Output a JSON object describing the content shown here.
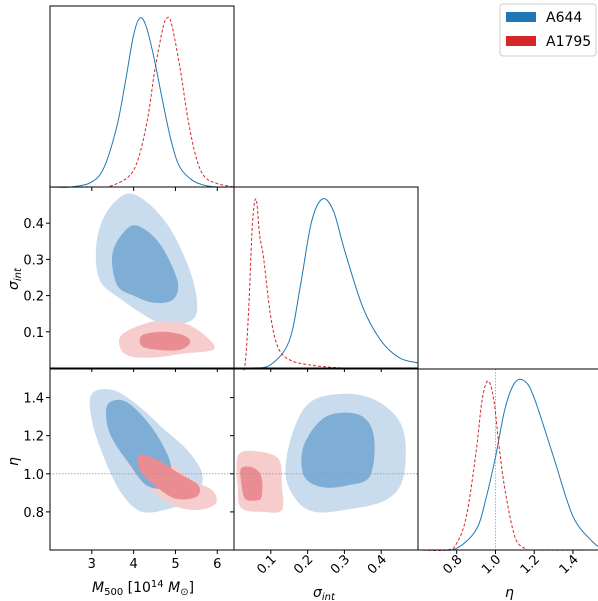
{
  "colors": {
    "A644": "#1f77b4",
    "A1795": "#d62728",
    "A644_outer": "#c9dcee",
    "A644_inner": "#7eadd6",
    "A1795_outer": "#f6cccd",
    "A1795_inner": "#e98d92"
  },
  "legend": {
    "entries": [
      "A644",
      "A1795"
    ],
    "position": "top-right"
  },
  "chart_data": {
    "type": "corner-plot",
    "parameters": [
      {
        "name": "M500",
        "label": "M_500 [10^14 M_sun]",
        "range": [
          2,
          6.4
        ],
        "ticks": [
          "3",
          "4",
          "5",
          "6"
        ]
      },
      {
        "name": "sigma_int",
        "label": "σ_int",
        "range": [
          0.0,
          0.5
        ],
        "ticks": [
          "0.1",
          "0.2",
          "0.3",
          "0.4"
        ]
      },
      {
        "name": "eta",
        "label": "η",
        "range": [
          0.6,
          1.55
        ],
        "ticks": [
          "0.8",
          "1.0",
          "1.2",
          "1.4"
        ],
        "reference_line": 1.0
      }
    ],
    "series": [
      {
        "name": "A644",
        "line_style": "solid",
        "M500_posterior": {
          "x": [
            2.0,
            2.5,
            3.0,
            3.3,
            3.6,
            3.8,
            4.0,
            4.15,
            4.3,
            4.5,
            4.7,
            4.9,
            5.1,
            5.4,
            5.7,
            6.0,
            6.4
          ],
          "density": [
            0.0,
            0.0,
            0.03,
            0.12,
            0.36,
            0.62,
            0.9,
            1.0,
            0.95,
            0.75,
            0.5,
            0.27,
            0.12,
            0.04,
            0.01,
            0.0,
            0.0
          ]
        },
        "sigma_int_posterior": {
          "x": [
            0.0,
            0.05,
            0.1,
            0.15,
            0.18,
            0.21,
            0.24,
            0.27,
            0.3,
            0.35,
            0.4,
            0.45,
            0.5
          ],
          "density": [
            0.0,
            0.0,
            0.02,
            0.16,
            0.48,
            0.86,
            1.0,
            0.93,
            0.7,
            0.36,
            0.16,
            0.06,
            0.03
          ]
        },
        "eta_posterior": {
          "x": [
            0.6,
            0.7,
            0.8,
            0.9,
            0.95,
            1.0,
            1.05,
            1.1,
            1.15,
            1.2,
            1.3,
            1.4,
            1.5,
            1.55
          ],
          "density": [
            0.0,
            0.0,
            0.01,
            0.12,
            0.3,
            0.55,
            0.84,
            0.99,
            1.0,
            0.9,
            0.55,
            0.2,
            0.05,
            0.01
          ]
        }
      },
      {
        "name": "A1795",
        "line_style": "dashed",
        "M500_posterior": {
          "x": [
            2.0,
            3.0,
            3.5,
            4.0,
            4.3,
            4.5,
            4.7,
            4.8,
            4.9,
            5.1,
            5.3,
            5.5,
            5.7,
            6.0,
            6.4
          ],
          "density": [
            0.0,
            0.0,
            0.01,
            0.1,
            0.36,
            0.68,
            0.94,
            1.0,
            0.97,
            0.72,
            0.4,
            0.17,
            0.06,
            0.02,
            0.0
          ]
        },
        "sigma_int_posterior": {
          "x": [
            0.0,
            0.02,
            0.03,
            0.04,
            0.05,
            0.06,
            0.07,
            0.08,
            0.1,
            0.12,
            0.15,
            0.2,
            0.3,
            0.5
          ],
          "density": [
            0.0,
            0.0,
            0.02,
            0.35,
            0.85,
            1.0,
            0.78,
            0.66,
            0.3,
            0.12,
            0.05,
            0.02,
            0.0,
            0.0
          ]
        },
        "eta_posterior": {
          "x": [
            0.6,
            0.75,
            0.8,
            0.85,
            0.9,
            0.93,
            0.96,
            0.99,
            1.02,
            1.05,
            1.1,
            1.15,
            1.2,
            1.55
          ],
          "density": [
            0.0,
            0.0,
            0.04,
            0.2,
            0.58,
            0.88,
            1.0,
            0.9,
            0.6,
            0.35,
            0.08,
            0.01,
            0.0,
            0.0
          ]
        }
      }
    ],
    "contours": [
      {
        "series": "A644",
        "pair": [
          "M500",
          "sigma_int"
        ],
        "level": "outer",
        "points": [
          [
            3.8,
            0.48
          ],
          [
            4.3,
            0.46
          ],
          [
            4.9,
            0.38
          ],
          [
            5.4,
            0.25
          ],
          [
            5.5,
            0.15
          ],
          [
            5.1,
            0.12
          ],
          [
            4.7,
            0.12
          ],
          [
            4.2,
            0.15
          ],
          [
            3.7,
            0.19
          ],
          [
            3.2,
            0.24
          ],
          [
            3.1,
            0.33
          ],
          [
            3.3,
            0.42
          ]
        ]
      },
      {
        "series": "A644",
        "pair": [
          "M500",
          "sigma_int"
        ],
        "level": "inner",
        "points": [
          [
            3.9,
            0.39
          ],
          [
            4.3,
            0.38
          ],
          [
            4.7,
            0.33
          ],
          [
            5.05,
            0.24
          ],
          [
            4.95,
            0.19
          ],
          [
            4.5,
            0.18
          ],
          [
            4.0,
            0.2
          ],
          [
            3.6,
            0.23
          ],
          [
            3.5,
            0.32
          ]
        ]
      },
      {
        "series": "A1795",
        "pair": [
          "M500",
          "sigma_int"
        ],
        "level": "outer",
        "points": [
          [
            3.7,
            0.09
          ],
          [
            4.2,
            0.12
          ],
          [
            4.7,
            0.13
          ],
          [
            5.3,
            0.12
          ],
          [
            5.8,
            0.08
          ],
          [
            5.9,
            0.05
          ],
          [
            5.2,
            0.04
          ],
          [
            4.6,
            0.03
          ],
          [
            4.0,
            0.03
          ],
          [
            3.7,
            0.05
          ]
        ]
      },
      {
        "series": "A1795",
        "pair": [
          "M500",
          "sigma_int"
        ],
        "level": "inner",
        "points": [
          [
            4.2,
            0.09
          ],
          [
            4.7,
            0.1
          ],
          [
            5.2,
            0.09
          ],
          [
            5.35,
            0.07
          ],
          [
            5.1,
            0.05
          ],
          [
            4.6,
            0.05
          ],
          [
            4.2,
            0.06
          ]
        ]
      },
      {
        "series": "A644",
        "pair": [
          "M500",
          "eta"
        ],
        "level": "outer",
        "points": [
          [
            3.0,
            1.42
          ],
          [
            3.5,
            1.44
          ],
          [
            4.1,
            1.36
          ],
          [
            4.7,
            1.24
          ],
          [
            5.3,
            1.12
          ],
          [
            5.65,
            0.99
          ],
          [
            5.45,
            0.87
          ],
          [
            4.9,
            0.82
          ],
          [
            4.2,
            0.8
          ],
          [
            3.7,
            0.9
          ],
          [
            3.3,
            1.08
          ],
          [
            3.0,
            1.28
          ]
        ]
      },
      {
        "series": "A644",
        "pair": [
          "M500",
          "eta"
        ],
        "level": "inner",
        "points": [
          [
            3.4,
            1.37
          ],
          [
            3.8,
            1.38
          ],
          [
            4.3,
            1.28
          ],
          [
            4.7,
            1.15
          ],
          [
            4.9,
            1.03
          ],
          [
            4.75,
            0.93
          ],
          [
            4.3,
            0.94
          ],
          [
            3.9,
            1.05
          ],
          [
            3.5,
            1.18
          ],
          [
            3.35,
            1.28
          ]
        ]
      },
      {
        "series": "A1795",
        "pair": [
          "M500",
          "eta"
        ],
        "level": "outer",
        "points": [
          [
            3.9,
            1.15
          ],
          [
            4.3,
            1.17
          ],
          [
            4.8,
            1.07
          ],
          [
            5.4,
            0.97
          ],
          [
            5.9,
            0.91
          ],
          [
            5.95,
            0.84
          ],
          [
            5.5,
            0.81
          ],
          [
            4.9,
            0.84
          ],
          [
            4.2,
            0.96
          ],
          [
            3.85,
            1.06
          ]
        ]
      },
      {
        "series": "A1795",
        "pair": [
          "M500",
          "eta"
        ],
        "level": "inner",
        "points": [
          [
            4.15,
            1.1
          ],
          [
            4.6,
            1.07
          ],
          [
            5.1,
            1.0
          ],
          [
            5.55,
            0.94
          ],
          [
            5.5,
            0.88
          ],
          [
            5.0,
            0.87
          ],
          [
            4.5,
            0.94
          ],
          [
            4.15,
            1.02
          ]
        ]
      },
      {
        "series": "A644",
        "pair": [
          "sigma_int",
          "eta"
        ],
        "level": "outer",
        "points": [
          [
            0.16,
            1.22
          ],
          [
            0.21,
            1.38
          ],
          [
            0.31,
            1.42
          ],
          [
            0.4,
            1.37
          ],
          [
            0.46,
            1.23
          ],
          [
            0.46,
            0.98
          ],
          [
            0.41,
            0.86
          ],
          [
            0.3,
            0.81
          ],
          [
            0.22,
            0.8
          ],
          [
            0.17,
            0.86
          ],
          [
            0.14,
            1.0
          ]
        ]
      },
      {
        "series": "A644",
        "pair": [
          "sigma_int",
          "eta"
        ],
        "level": "inner",
        "points": [
          [
            0.19,
            1.15
          ],
          [
            0.25,
            1.3
          ],
          [
            0.34,
            1.31
          ],
          [
            0.38,
            1.2
          ],
          [
            0.37,
            0.99
          ],
          [
            0.31,
            0.94
          ],
          [
            0.24,
            0.93
          ],
          [
            0.19,
            0.99
          ]
        ]
      },
      {
        "series": "A1795",
        "pair": [
          "sigma_int",
          "eta"
        ],
        "level": "outer",
        "points": [
          [
            0.01,
            1.09
          ],
          [
            0.05,
            1.12
          ],
          [
            0.12,
            1.08
          ],
          [
            0.13,
            0.94
          ],
          [
            0.13,
            0.81
          ],
          [
            0.08,
            0.8
          ],
          [
            0.02,
            0.82
          ],
          [
            0.01,
            0.93
          ]
        ]
      },
      {
        "series": "A1795",
        "pair": [
          "sigma_int",
          "eta"
        ],
        "level": "inner",
        "points": [
          [
            0.02,
            1.03
          ],
          [
            0.055,
            1.03
          ],
          [
            0.075,
            0.98
          ],
          [
            0.075,
            0.88
          ],
          [
            0.06,
            0.86
          ],
          [
            0.03,
            0.87
          ],
          [
            0.02,
            0.95
          ]
        ]
      }
    ]
  }
}
